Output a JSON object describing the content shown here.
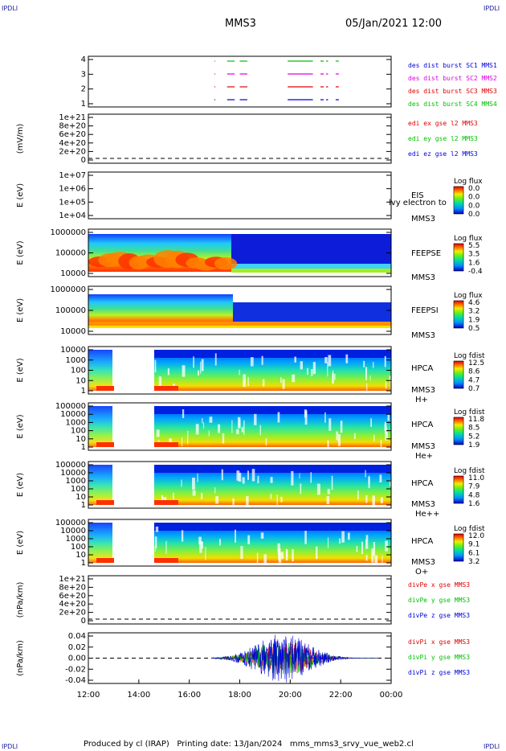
{
  "header": {
    "corner_left": "IPDLI",
    "corner_right": "IPDLI",
    "corner_bl": "IPDLI",
    "corner_br": "IPDLI",
    "mission": "MMS3",
    "datetime": "05/Jan/2021 12:00"
  },
  "footer": "Produced by cl (IRAP)   Printing date: 13/Jan/2024   mms_mms3_srvy_vue_web2.cl",
  "colors": {
    "red": "#e00000",
    "green": "#00c000",
    "blue": "#0000dd",
    "magenta": "#dd00dd"
  },
  "chart_data": {
    "type": "stack",
    "x": {
      "ticks": [
        "12:00",
        "14:00",
        "16:00",
        "18:00",
        "20:00",
        "22:00",
        "00:00"
      ],
      "range": [
        12,
        24
      ]
    },
    "panels": [
      {
        "id": "burst",
        "type": "line",
        "ylabel": "",
        "yticks": [
          "4",
          "3",
          "2",
          "1"
        ],
        "legend": [
          {
            "text": "des dist burst SC1 MMS1",
            "color": "#0000dd"
          },
          {
            "text": "des dist burst SC2 MMS2",
            "color": "#dd00dd"
          },
          {
            "text": "des dist burst SC3 MMS3",
            "color": "#e00000"
          },
          {
            "text": "des dist burst SC4 MMS4",
            "color": "#00c000"
          }
        ],
        "segments": [
          [
            17.0,
            17.1
          ],
          [
            17.5,
            17.8
          ],
          [
            18.0,
            18.3
          ],
          [
            19.9,
            20.9
          ],
          [
            21.2,
            21.5
          ],
          [
            21.8,
            22.0
          ]
        ],
        "levels": [
          4,
          3,
          2,
          1
        ]
      },
      {
        "id": "edi",
        "type": "line",
        "ylabel": "(mV/m)",
        "yticks": [
          "1e+21",
          "8e+20",
          "6e+20",
          "4e+20",
          "2e+20",
          "0"
        ],
        "legend": [
          {
            "text": "edi ex gse l2 MMS3",
            "color": "#e00000"
          },
          {
            "text": "edi ey gse l2 MMS3",
            "color": "#00c000"
          },
          {
            "text": "edi ez gse l2 MMS3",
            "color": "#0000dd"
          }
        ]
      },
      {
        "id": "eis",
        "type": "heatmap",
        "ylabel": "E (eV)",
        "yticks": [
          "1e+07",
          "1e+06",
          "1e+05",
          "1e+04"
        ],
        "labels": [
          "EIS",
          "MMS3"
        ],
        "overlay_text": "lvy electron to",
        "colorbar": {
          "title": "Log flux",
          "ticks": [
            "0.0",
            "0.0",
            "0.0",
            "0.0"
          ]
        }
      },
      {
        "id": "feepse",
        "type": "heatmap",
        "ylabel": "E (eV)",
        "yticks": [
          "1000000",
          "100000",
          "10000"
        ],
        "labels": [
          "FEEPSE",
          "MMS3"
        ],
        "colorbar": {
          "title": "Log flux",
          "ticks": [
            "5.5",
            "3.5",
            "1.6",
            "-0.4"
          ]
        }
      },
      {
        "id": "feepsi",
        "type": "heatmap",
        "ylabel": "E (eV)",
        "yticks": [
          "1000000",
          "100000",
          "10000"
        ],
        "labels": [
          "FEEPSI",
          "MMS3"
        ],
        "colorbar": {
          "title": "Log flux",
          "ticks": [
            "4.6",
            "3.2",
            "1.9",
            "0.5"
          ]
        }
      },
      {
        "id": "hpca_h",
        "type": "heatmap",
        "ylabel": "E (eV)",
        "yticks": [
          "10000",
          "1000",
          "100",
          "10",
          "1"
        ],
        "labels": [
          "HPCA",
          "MMS3",
          "H+"
        ],
        "colorbar": {
          "title": "Log fdist",
          "ticks": [
            "12.5",
            "8.6",
            "4.7",
            "0.7"
          ]
        }
      },
      {
        "id": "hpca_he",
        "type": "heatmap",
        "ylabel": "E (eV)",
        "yticks": [
          "100000",
          "10000",
          "1000",
          "100",
          "10",
          "1"
        ],
        "labels": [
          "HPCA",
          "MMS3",
          "He+"
        ],
        "colorbar": {
          "title": "Log fdist",
          "ticks": [
            "11.8",
            "8.5",
            "5.2",
            "1.9"
          ]
        }
      },
      {
        "id": "hpca_hepp",
        "type": "heatmap",
        "ylabel": "E (eV)",
        "yticks": [
          "100000",
          "10000",
          "1000",
          "100",
          "10",
          "1"
        ],
        "labels": [
          "HPCA",
          "MMS3",
          "He++"
        ],
        "colorbar": {
          "title": "Log fdist",
          "ticks": [
            "11.0",
            "7.9",
            "4.8",
            "1.6"
          ]
        }
      },
      {
        "id": "hpca_o",
        "type": "heatmap",
        "ylabel": "E (eV)",
        "yticks": [
          "100000",
          "10000",
          "1000",
          "100",
          "10",
          "1"
        ],
        "labels": [
          "HPCA",
          "MMS3",
          "O+"
        ],
        "colorbar": {
          "title": "Log fdist",
          "ticks": [
            "12.0",
            "9.1",
            "6.1",
            "3.2"
          ]
        }
      },
      {
        "id": "divpe",
        "type": "line",
        "ylabel": "(nPa/km)",
        "yticks": [
          "1e+21",
          "8e+20",
          "6e+20",
          "4e+20",
          "2e+20",
          "0"
        ],
        "legend": [
          {
            "text": "divPe x gse MMS3",
            "color": "#e00000"
          },
          {
            "text": "divPe y gse MMS3",
            "color": "#00c000"
          },
          {
            "text": "divPe z gse MMS3",
            "color": "#0000dd"
          }
        ]
      },
      {
        "id": "divpi",
        "type": "line",
        "ylabel": "(nPa/km)",
        "yticks": [
          "0.04",
          "0.02",
          "0.00",
          "-0.02",
          "-0.04"
        ],
        "ylim": [
          -0.05,
          0.05
        ],
        "legend": [
          {
            "text": "divPi x gse MMS3",
            "color": "#e00000"
          },
          {
            "text": "divPi y gse MMS3",
            "color": "#00c000"
          },
          {
            "text": "divPi z gse MMS3",
            "color": "#0000dd"
          }
        ]
      }
    ]
  }
}
